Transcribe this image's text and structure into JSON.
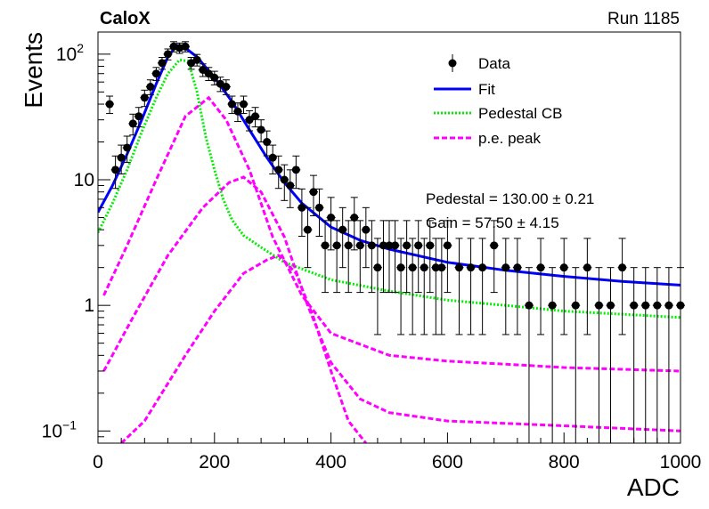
{
  "header": {
    "experiment_label": "CaloX",
    "run_label": "Run 1185"
  },
  "fit_results": {
    "pedestal": "Pedestal = 130.00 ± 0.21",
    "gain": "Gain = 57.50 ± 4.15"
  },
  "legend": {
    "placement": "top-right",
    "entries": [
      {
        "label": "Data",
        "style": "marker",
        "color": "#000000"
      },
      {
        "label": "Fit",
        "style": "solid",
        "color": "#0000ff"
      },
      {
        "label": "Pedestal CB",
        "style": "dotted",
        "color": "#00ee00"
      },
      {
        "label": "p.e. peak",
        "style": "dashed",
        "color": "#ff00ff"
      }
    ]
  },
  "chart_data": {
    "type": "scatter",
    "xlabel": "ADC",
    "ylabel": "Events",
    "xlim": [
      0,
      1000
    ],
    "ylim": [
      0.08,
      150
    ],
    "yscale": "log",
    "grid": false,
    "x_ticks": [
      "0",
      "200",
      "400",
      "600",
      "800",
      "1000"
    ],
    "y_ticks": [
      {
        "value": 0.1,
        "base": "10",
        "exp": "−1"
      },
      {
        "value": 1,
        "base": "1",
        "exp": ""
      },
      {
        "value": 10,
        "base": "10",
        "exp": ""
      },
      {
        "value": 100,
        "base": "10",
        "exp": "2"
      }
    ],
    "series": [
      {
        "name": "Data",
        "kind": "points",
        "color": "#000000",
        "points": [
          [
            20,
            40
          ],
          [
            30,
            12
          ],
          [
            40,
            15
          ],
          [
            50,
            18
          ],
          [
            60,
            28
          ],
          [
            70,
            32
          ],
          [
            80,
            45
          ],
          [
            90,
            55
          ],
          [
            100,
            70
          ],
          [
            110,
            85
          ],
          [
            120,
            100
          ],
          [
            130,
            115
          ],
          [
            140,
            112
          ],
          [
            150,
            115
          ],
          [
            160,
            85
          ],
          [
            170,
            90
          ],
          [
            180,
            75
          ],
          [
            190,
            70
          ],
          [
            200,
            65
          ],
          [
            210,
            58
          ],
          [
            220,
            55
          ],
          [
            230,
            40
          ],
          [
            240,
            35
          ],
          [
            250,
            40
          ],
          [
            260,
            30
          ],
          [
            270,
            32
          ],
          [
            280,
            25
          ],
          [
            290,
            20
          ],
          [
            300,
            15
          ],
          [
            310,
            12
          ],
          [
            320,
            10
          ],
          [
            330,
            9
          ],
          [
            340,
            12
          ],
          [
            350,
            6
          ],
          [
            360,
            4
          ],
          [
            370,
            8
          ],
          [
            380,
            6
          ],
          [
            390,
            3
          ],
          [
            400,
            5
          ],
          [
            410,
            3
          ],
          [
            420,
            4
          ],
          [
            430,
            3
          ],
          [
            440,
            5
          ],
          [
            450,
            3
          ],
          [
            460,
            4
          ],
          [
            470,
            3
          ],
          [
            480,
            2
          ],
          [
            490,
            3
          ],
          [
            500,
            3
          ],
          [
            510,
            3
          ],
          [
            520,
            2
          ],
          [
            530,
            3
          ],
          [
            540,
            2
          ],
          [
            550,
            3
          ],
          [
            560,
            2
          ],
          [
            570,
            3
          ],
          [
            580,
            2
          ],
          [
            590,
            2
          ],
          [
            600,
            3
          ],
          [
            620,
            2
          ],
          [
            640,
            2
          ],
          [
            660,
            2
          ],
          [
            680,
            3
          ],
          [
            700,
            2
          ],
          [
            720,
            2
          ],
          [
            740,
            1
          ],
          [
            760,
            2
          ],
          [
            780,
            1
          ],
          [
            800,
            2
          ],
          [
            820,
            1
          ],
          [
            840,
            2
          ],
          [
            860,
            1
          ],
          [
            880,
            1
          ],
          [
            900,
            2
          ],
          [
            920,
            1
          ],
          [
            940,
            1
          ],
          [
            960,
            1
          ],
          [
            980,
            1
          ],
          [
            1000,
            1
          ]
        ]
      },
      {
        "name": "Fit",
        "kind": "solid",
        "color": "#0000ff",
        "points": [
          [
            0,
            5.5
          ],
          [
            25,
            9
          ],
          [
            50,
            16
          ],
          [
            75,
            30
          ],
          [
            100,
            58
          ],
          [
            120,
            95
          ],
          [
            135,
            118
          ],
          [
            150,
            112
          ],
          [
            170,
            95
          ],
          [
            200,
            65
          ],
          [
            230,
            42
          ],
          [
            260,
            25
          ],
          [
            290,
            15
          ],
          [
            320,
            9.5
          ],
          [
            350,
            6.5
          ],
          [
            400,
            4.2
          ],
          [
            450,
            3.3
          ],
          [
            500,
            2.8
          ],
          [
            600,
            2.2
          ],
          [
            700,
            1.9
          ],
          [
            800,
            1.7
          ],
          [
            900,
            1.55
          ],
          [
            1000,
            1.45
          ]
        ]
      },
      {
        "name": "Pedestal CB",
        "kind": "dotted",
        "color": "#00ee00",
        "points": [
          [
            0,
            3.8
          ],
          [
            25,
            6.5
          ],
          [
            50,
            12
          ],
          [
            75,
            24
          ],
          [
            100,
            45
          ],
          [
            120,
            70
          ],
          [
            140,
            90
          ],
          [
            155,
            88
          ],
          [
            170,
            50
          ],
          [
            185,
            22
          ],
          [
            200,
            12
          ],
          [
            215,
            7
          ],
          [
            230,
            4.8
          ],
          [
            250,
            3.6
          ],
          [
            280,
            2.9
          ],
          [
            320,
            2.2
          ],
          [
            400,
            1.6
          ],
          [
            500,
            1.3
          ],
          [
            600,
            1.1
          ],
          [
            700,
            1.0
          ],
          [
            800,
            0.9
          ],
          [
            900,
            0.85
          ],
          [
            1000,
            0.8
          ]
        ]
      },
      {
        "name": "p.e. peak 1",
        "kind": "dashed",
        "color": "#ff00ff",
        "points": [
          [
            10,
            1.2
          ],
          [
            50,
            3
          ],
          [
            100,
            10
          ],
          [
            150,
            32
          ],
          [
            190,
            45
          ],
          [
            220,
            30
          ],
          [
            260,
            12
          ],
          [
            300,
            3.5
          ],
          [
            350,
            1.2
          ],
          [
            400,
            0.6
          ],
          [
            500,
            0.4
          ],
          [
            600,
            0.36
          ],
          [
            700,
            0.34
          ],
          [
            800,
            0.32
          ],
          [
            1000,
            0.3
          ]
        ]
      },
      {
        "name": "p.e. peak 2",
        "kind": "dashed",
        "color": "#ff00ff",
        "points": [
          [
            10,
            0.3
          ],
          [
            60,
            0.8
          ],
          [
            120,
            2.5
          ],
          [
            180,
            6
          ],
          [
            225,
            9.5
          ],
          [
            250,
            10.5
          ],
          [
            280,
            8
          ],
          [
            320,
            3.5
          ],
          [
            360,
            1.0
          ],
          [
            400,
            0.35
          ],
          [
            450,
            0.18
          ],
          [
            500,
            0.14
          ],
          [
            600,
            0.12
          ],
          [
            800,
            0.11
          ],
          [
            1000,
            0.1
          ]
        ]
      },
      {
        "name": "p.e. peak 3",
        "kind": "dashed",
        "color": "#ff00ff",
        "points": [
          [
            40,
            0.08
          ],
          [
            80,
            0.12
          ],
          [
            150,
            0.4
          ],
          [
            200,
            0.9
          ],
          [
            250,
            1.8
          ],
          [
            290,
            2.3
          ],
          [
            310,
            2.5
          ],
          [
            340,
            1.8
          ],
          [
            370,
            0.8
          ],
          [
            400,
            0.3
          ],
          [
            430,
            0.12
          ],
          [
            460,
            0.08
          ]
        ]
      }
    ]
  }
}
